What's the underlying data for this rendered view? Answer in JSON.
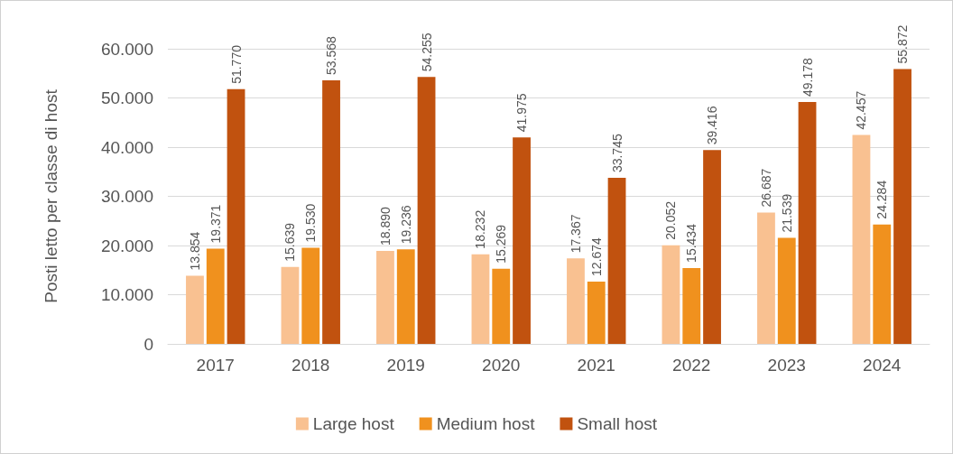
{
  "chart_data": {
    "type": "bar",
    "ylabel": "Posti letto per classe di host",
    "categories": [
      "2017",
      "2018",
      "2019",
      "2020",
      "2021",
      "2022",
      "2023",
      "2024"
    ],
    "series": [
      {
        "name": "Large host",
        "color": "#f9c191",
        "values": [
          13854,
          15639,
          18890,
          18232,
          17367,
          20052,
          26687,
          42457
        ],
        "value_labels": [
          "13.854",
          "15.639",
          "18.890",
          "18.232",
          "17.367",
          "20.052",
          "26.687",
          "42.457"
        ]
      },
      {
        "name": "Medium host",
        "color": "#f0911e",
        "values": [
          19371,
          19530,
          19236,
          15269,
          12674,
          15434,
          21539,
          24284
        ],
        "value_labels": [
          "19.371",
          "19.530",
          "19.236",
          "15.269",
          "12.674",
          "15.434",
          "21.539",
          "24.284"
        ]
      },
      {
        "name": "Small host",
        "color": "#c1520f",
        "values": [
          51770,
          53568,
          54255,
          41975,
          33745,
          39416,
          49178,
          55872
        ],
        "value_labels": [
          "51.770",
          "53.568",
          "54.255",
          "41.975",
          "33.745",
          "39.416",
          "49.178",
          "55.872"
        ]
      }
    ],
    "ylim": [
      0,
      60000
    ],
    "yticks": [
      {
        "value": 0,
        "label": "0"
      },
      {
        "value": 10000,
        "label": "10.000"
      },
      {
        "value": 20000,
        "label": "20.000"
      },
      {
        "value": 30000,
        "label": "30.000"
      },
      {
        "value": 40000,
        "label": "40.000"
      },
      {
        "value": 50000,
        "label": "50.000"
      },
      {
        "value": 60000,
        "label": "60.000"
      }
    ],
    "grid": "y",
    "legend": "bottom"
  }
}
